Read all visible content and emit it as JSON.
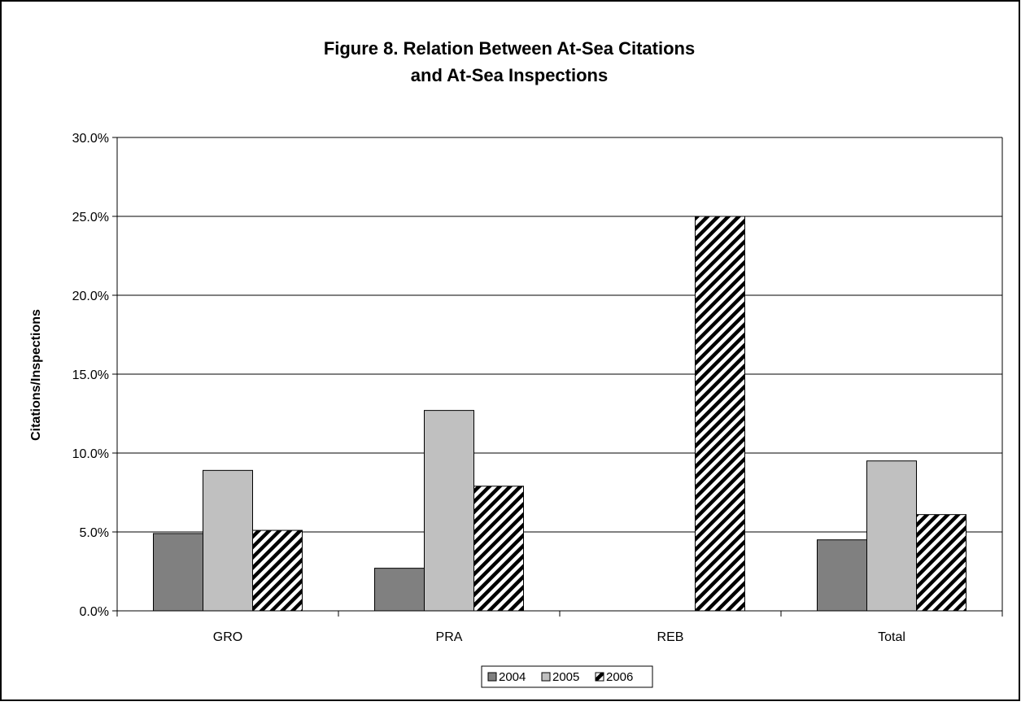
{
  "chart_data": {
    "type": "bar",
    "title_lines": [
      "Figure 8.  Relation Between At-Sea Citations",
      "and At-Sea Inspections"
    ],
    "xlabel": "",
    "ylabel": "Citations/Inspections",
    "categories": [
      "GRO",
      "PRA",
      "REB",
      "Total"
    ],
    "series": [
      {
        "name": "2004",
        "values": [
          0.049,
          0.027,
          0.0,
          0.045
        ],
        "color": "#808080",
        "pattern": "solid"
      },
      {
        "name": "2005",
        "values": [
          0.089,
          0.127,
          0.0,
          0.095
        ],
        "color": "#c0c0c0",
        "pattern": "solid"
      },
      {
        "name": "2006",
        "values": [
          0.051,
          0.079,
          0.25,
          0.061
        ],
        "color": "#ffffff",
        "pattern": "diagonal-hatch"
      }
    ],
    "ylim": [
      0,
      0.3
    ],
    "yticks": [
      0,
      0.05,
      0.1,
      0.15,
      0.2,
      0.25,
      0.3
    ],
    "ytick_labels": [
      "0.0%",
      "5.0%",
      "10.0%",
      "15.0%",
      "20.0%",
      "25.0%",
      "30.0%"
    ],
    "grid": true,
    "legend_position": "bottom"
  }
}
